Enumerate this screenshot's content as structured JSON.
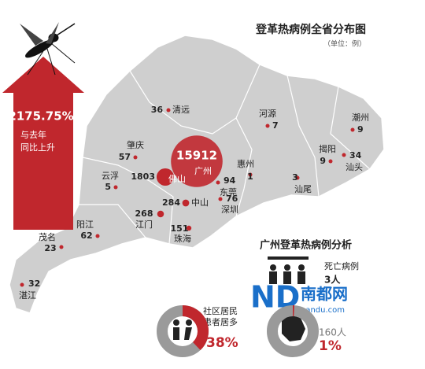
{
  "header": {
    "title": "登革热病例全省分布图",
    "unit": "（单位：例）"
  },
  "increase": {
    "value": "2175.75%",
    "line1": "与去年",
    "line2": "同比上升"
  },
  "cities": [
    {
      "name": "清远",
      "cases": 36
    },
    {
      "name": "肇庆",
      "cases": 57
    },
    {
      "name": "河源",
      "cases": 7
    },
    {
      "name": "潮州",
      "cases": 9
    },
    {
      "name": "广州",
      "cases": 15912
    },
    {
      "name": "佛山",
      "cases": 1803
    },
    {
      "name": "云浮",
      "cases": 5
    },
    {
      "name": "惠州",
      "cases": 1
    },
    {
      "name": "揭阳",
      "cases": 9
    },
    {
      "name": "汕头",
      "cases": 34
    },
    {
      "name": "东莞",
      "cases": 94
    },
    {
      "name": "汕尾",
      "cases": 3
    },
    {
      "name": "深圳",
      "cases": 76
    },
    {
      "name": "中山",
      "cases": 284
    },
    {
      "name": "江门",
      "cases": 268
    },
    {
      "name": "珠海",
      "cases": 151
    },
    {
      "name": "阳江",
      "cases": 62
    },
    {
      "name": "茂名",
      "cases": 23
    },
    {
      "name": "湛江",
      "cases": 32
    }
  ],
  "analysis": {
    "title": "广州登革热病例分析",
    "death_label": "死亡病例",
    "death_count": "3人",
    "community": {
      "line1": "社区居民",
      "line2": "患者居多",
      "percent": {
        "value": 38,
        "label": "38%"
      }
    },
    "other": {
      "count": "160人",
      "percent": {
        "value": 1,
        "label": "1%"
      }
    }
  },
  "watermark": {
    "logo": "ND",
    "name": "南都网",
    "url": "nandu.com"
  }
}
